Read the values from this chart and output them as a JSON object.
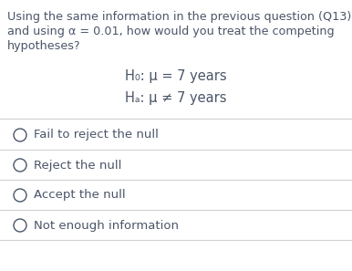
{
  "question_text_line1": "Using the same information in the previous question (Q13)",
  "question_text_line2": "and using α = 0.01, how would you treat the competing",
  "question_text_line3": "hypotheses?",
  "h0_text": "H₀: μ = 7 years",
  "ha_text": "Hₐ: μ ≠ 7 years",
  "options": [
    "Fail to reject the null",
    "Reject the null",
    "Accept the null",
    "Not enough information"
  ],
  "text_color": "#4a5568",
  "bg_color": "#ffffff",
  "line_color": "#d0d0d0",
  "font_size_question": 9.2,
  "font_size_hyp": 10.5,
  "font_size_option": 9.5
}
